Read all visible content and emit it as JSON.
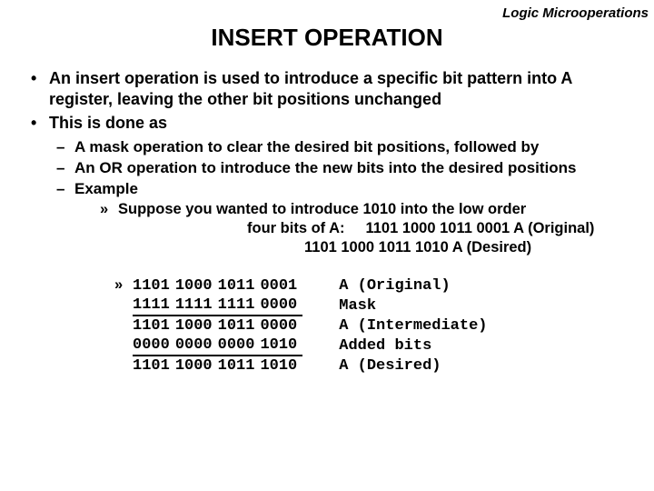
{
  "header_label": "Logic Microoperations",
  "title": "INSERT OPERATION",
  "bullets": [
    "An insert operation is used to introduce a specific bit pattern into A register, leaving the other bit positions unchanged",
    "This is done as"
  ],
  "dashes": [
    "A mask operation to clear the desired bit positions, followed by",
    "An OR operation to introduce the new bits into the desired positions",
    "Example"
  ],
  "example": {
    "line1": "Suppose you wanted to introduce 1010 into the low order",
    "line2": "four bits of A:     1101 1000 1011 0001 A (Original)",
    "line3": "1101 1000 1011 1010 A (Desired)"
  },
  "table": {
    "rows": [
      {
        "bits": [
          "1101",
          "1000",
          "1011",
          "0001"
        ],
        "label": "A (Original)",
        "sep": false
      },
      {
        "bits": [
          "1111",
          "1111",
          "1111",
          "0000"
        ],
        "label": "Mask",
        "sep": true
      },
      {
        "bits": [
          "1101",
          "1000",
          "1011",
          "0000"
        ],
        "label": "A (Intermediate)",
        "sep": false
      },
      {
        "bits": [
          "0000",
          "0000",
          "0000",
          "1010"
        ],
        "label": "Added bits",
        "sep": true
      },
      {
        "bits": [
          "1101",
          "1000",
          "1011",
          "1010"
        ],
        "label": "A (Desired)",
        "sep": false
      }
    ]
  },
  "colors": {
    "text": "#000000",
    "background": "#ffffff",
    "rule": "#000000"
  }
}
